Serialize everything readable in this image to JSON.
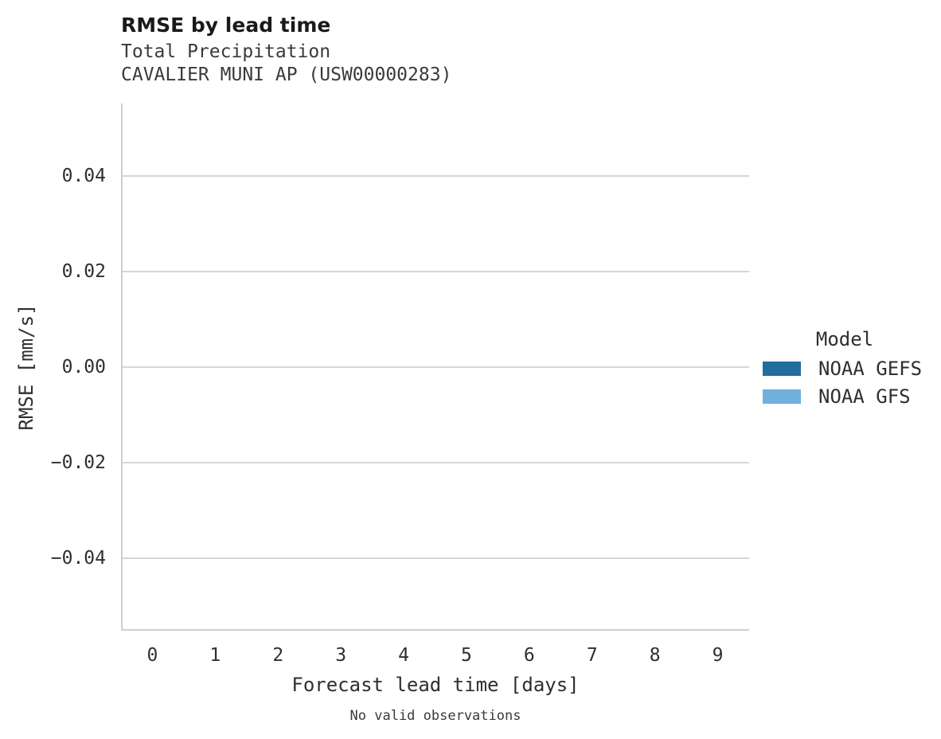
{
  "header": {
    "title": "RMSE by lead time",
    "subtitle_variable": "Total Precipitation",
    "subtitle_station": "CAVALIER MUNI AP (USW00000283)"
  },
  "axes": {
    "xlabel": "Forecast lead time [days]",
    "ylabel": "RMSE [mm/s]"
  },
  "legend": {
    "title": "Model",
    "entries": [
      {
        "label": "NOAA GEFS",
        "color": "#1f6e9e"
      },
      {
        "label": "NOAA GFS",
        "color": "#6fb1da"
      }
    ]
  },
  "caption": "No valid observations",
  "colors": {
    "spine": "#cfcfcf",
    "gridline": "#d6d6d6",
    "title_text": "#1a1a1a",
    "body_text": "#2f2f2f"
  },
  "chart_data": {
    "type": "line",
    "title": "RMSE by lead time",
    "subtitle": [
      "Total Precipitation",
      "CAVALIER MUNI AP (USW00000283)"
    ],
    "xlabel": "Forecast lead time [days]",
    "ylabel": "RMSE [mm/s]",
    "xlim": [
      -0.5,
      9.5
    ],
    "ylim": [
      -0.0552,
      0.0552
    ],
    "xticks": [
      0,
      1,
      2,
      3,
      4,
      5,
      6,
      7,
      8,
      9
    ],
    "xtick_labels": [
      "0",
      "1",
      "2",
      "3",
      "4",
      "5",
      "6",
      "7",
      "8",
      "9"
    ],
    "yticks": [
      0.04,
      0.02,
      0.0,
      -0.02,
      -0.04
    ],
    "ytick_labels": [
      "0.04",
      "0.02",
      "0.00",
      "−0.02",
      "−0.04"
    ],
    "grid": "horizontal-only",
    "legend_position": "right",
    "series": [
      {
        "name": "NOAA GEFS",
        "color": "#1f6e9e",
        "x": [],
        "y": []
      },
      {
        "name": "NOAA GFS",
        "color": "#6fb1da",
        "x": [],
        "y": []
      }
    ],
    "annotations": [
      "No valid observations"
    ]
  }
}
